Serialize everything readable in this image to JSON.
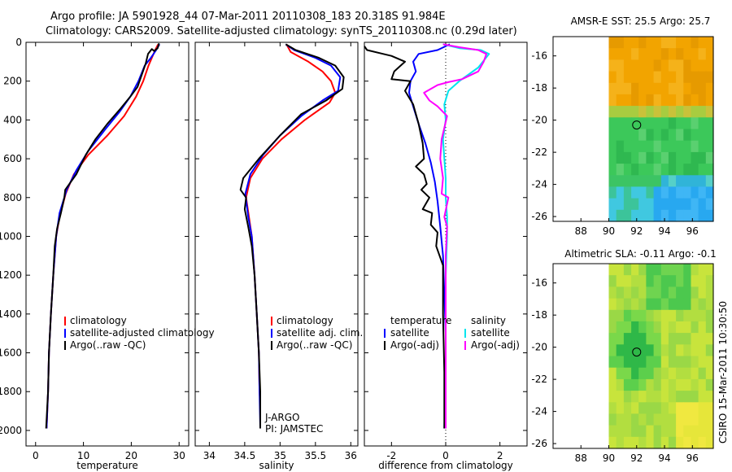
{
  "header": {
    "line1": "Argo profile: JA 5901928_44 07-Mar-2011 20110308_183 20.318S 91.984E",
    "line2": "Climatology: CARS2009. Satellite-adjusted climatology: synTS_20110308.nc (0.29d later)"
  },
  "colors": {
    "climatology": "#ff0000",
    "satellite": "#0000ff",
    "argo": "#000000",
    "salinity_satellite": "#00e5ee",
    "salinity_argo": "#ff00ff"
  },
  "side_label": "CSIRO 15-Mar-2011 10:30:50",
  "chart_data": [
    {
      "type": "line",
      "id": "temperature",
      "xlabel": "temperature",
      "ylabel": "depth",
      "xlim": [
        -2,
        32
      ],
      "ylim": [
        2080,
        0
      ],
      "xticks": [
        0,
        10,
        20,
        30
      ],
      "yticks": [
        0,
        200,
        400,
        600,
        800,
        1000,
        1200,
        1400,
        1600,
        1800,
        2000
      ],
      "legend": [
        "climatology",
        "satellite-adjusted climatology",
        "Argo(..raw -QC)"
      ],
      "series": [
        {
          "name": "climatology",
          "color": "#ff0000",
          "points": [
            [
              25.6,
              10
            ],
            [
              25,
              40
            ],
            [
              24.3,
              80
            ],
            [
              23.6,
              120
            ],
            [
              22.5,
              200
            ],
            [
              21,
              280
            ],
            [
              18.5,
              380
            ],
            [
              15,
              480
            ],
            [
              11,
              580
            ],
            [
              8,
              680
            ],
            [
              6.3,
              780
            ],
            [
              5,
              900
            ],
            [
              4.3,
              1000
            ],
            [
              3.7,
              1200
            ],
            [
              3.2,
              1400
            ],
            [
              2.8,
              1600
            ],
            [
              2.6,
              1800
            ],
            [
              2.3,
              1990
            ]
          ]
        },
        {
          "name": "satellite-adjusted climatology",
          "color": "#0000ff",
          "points": [
            [
              25.9,
              10
            ],
            [
              25.2,
              40
            ],
            [
              24.1,
              80
            ],
            [
              22.8,
              120
            ],
            [
              21.5,
              200
            ],
            [
              19.8,
              280
            ],
            [
              17.5,
              360
            ],
            [
              14.5,
              450
            ],
            [
              11,
              560
            ],
            [
              8.5,
              660
            ],
            [
              6.5,
              760
            ],
            [
              5,
              880
            ],
            [
              4.3,
              1000
            ],
            [
              3.7,
              1200
            ],
            [
              3.2,
              1400
            ],
            [
              2.8,
              1600
            ],
            [
              2.6,
              1800
            ],
            [
              2.3,
              1990
            ]
          ]
        },
        {
          "name": "Argo(..raw -QC)",
          "color": "#000000",
          "points": [
            [
              25.8,
              5
            ],
            [
              25.5,
              30
            ],
            [
              24.8,
              45
            ],
            [
              24.3,
              35
            ],
            [
              23.5,
              60
            ],
            [
              23,
              110
            ],
            [
              22.3,
              160
            ],
            [
              21.3,
              230
            ],
            [
              19.8,
              280
            ],
            [
              17.8,
              340
            ],
            [
              15,
              420
            ],
            [
              12.5,
              500
            ],
            [
              10.5,
              580
            ],
            [
              8.5,
              680
            ],
            [
              6.2,
              760
            ],
            [
              6,
              800
            ],
            [
              5.3,
              880
            ],
            [
              4.5,
              960
            ],
            [
              4,
              1050
            ],
            [
              3.7,
              1200
            ],
            [
              3.2,
              1400
            ],
            [
              2.8,
              1600
            ],
            [
              2.6,
              1800
            ],
            [
              2.2,
              1990
            ]
          ]
        }
      ]
    },
    {
      "type": "line",
      "id": "salinity",
      "xlabel": "salinity",
      "ylabel": "depth",
      "xlim": [
        33.8,
        36.1
      ],
      "ylim": [
        2080,
        0
      ],
      "xticks": [
        34,
        34.5,
        35,
        35.5,
        36
      ],
      "yticks": [
        0,
        200,
        400,
        600,
        800,
        1000,
        1200,
        1400,
        1600,
        1800,
        2000
      ],
      "legend": [
        "climatology",
        "satellite adj. clim.",
        "Argo(..raw -QC)"
      ],
      "annotations": [
        "J-ARGO",
        "PI: JAMSTEC"
      ],
      "series": [
        {
          "name": "climatology",
          "color": "#ff0000",
          "points": [
            [
              35.09,
              10
            ],
            [
              35.15,
              50
            ],
            [
              35.4,
              100
            ],
            [
              35.6,
              150
            ],
            [
              35.72,
              200
            ],
            [
              35.78,
              260
            ],
            [
              35.7,
              310
            ],
            [
              35.35,
              400
            ],
            [
              35.02,
              500
            ],
            [
              34.75,
              600
            ],
            [
              34.58,
              700
            ],
            [
              34.52,
              800
            ],
            [
              34.56,
              900
            ],
            [
              34.6,
              1000
            ],
            [
              34.64,
              1200
            ],
            [
              34.67,
              1400
            ],
            [
              34.7,
              1600
            ],
            [
              34.71,
              1800
            ],
            [
              34.72,
              1860
            ]
          ]
        },
        {
          "name": "satellite adj. clim.",
          "color": "#0000ff",
          "points": [
            [
              35.08,
              10
            ],
            [
              35.2,
              40
            ],
            [
              35.5,
              80
            ],
            [
              35.72,
              120
            ],
            [
              35.85,
              180
            ],
            [
              35.82,
              250
            ],
            [
              35.6,
              300
            ],
            [
              35.3,
              380
            ],
            [
              35.0,
              480
            ],
            [
              34.76,
              580
            ],
            [
              34.58,
              680
            ],
            [
              34.51,
              780
            ],
            [
              34.55,
              900
            ],
            [
              34.6,
              1000
            ],
            [
              34.64,
              1200
            ],
            [
              34.67,
              1400
            ],
            [
              34.7,
              1600
            ],
            [
              34.71,
              1800
            ],
            [
              34.72,
              1990
            ]
          ]
        },
        {
          "name": "Argo(..raw -QC)",
          "color": "#000000",
          "points": [
            [
              35.08,
              10
            ],
            [
              35.22,
              40
            ],
            [
              35.55,
              80
            ],
            [
              35.78,
              120
            ],
            [
              35.9,
              180
            ],
            [
              35.88,
              240
            ],
            [
              35.65,
              300
            ],
            [
              35.3,
              370
            ],
            [
              35.0,
              480
            ],
            [
              34.7,
              600
            ],
            [
              34.48,
              700
            ],
            [
              34.44,
              760
            ],
            [
              34.52,
              800
            ],
            [
              34.5,
              860
            ],
            [
              34.55,
              950
            ],
            [
              34.6,
              1050
            ],
            [
              34.64,
              1200
            ],
            [
              34.67,
              1400
            ],
            [
              34.7,
              1600
            ],
            [
              34.72,
              1800
            ],
            [
              34.72,
              1990
            ]
          ]
        }
      ]
    },
    {
      "type": "line",
      "id": "difference",
      "xlabel": "difference from climatology",
      "ylabel": "depth",
      "xlim": [
        -3,
        3
      ],
      "ylim": [
        2080,
        0
      ],
      "xticks": [
        -2,
        0,
        2
      ],
      "yticks": [
        0,
        200,
        400,
        600,
        800,
        1000,
        1200,
        1400,
        1600,
        1800,
        2000
      ],
      "legend": [
        "temperature",
        "satellite",
        "Argo(-adj)",
        "salinity",
        "satellite",
        "Argo(-adj)"
      ],
      "series": [
        {
          "name": "temperature satellite",
          "color": "#0000ff",
          "points": [
            [
              0.15,
              10
            ],
            [
              -0.3,
              40
            ],
            [
              -1.0,
              60
            ],
            [
              -1.2,
              100
            ],
            [
              -1.1,
              150
            ],
            [
              -1.3,
              200
            ],
            [
              -1.35,
              260
            ],
            [
              -1.2,
              330
            ],
            [
              -1.0,
              420
            ],
            [
              -0.75,
              520
            ],
            [
              -0.55,
              620
            ],
            [
              -0.4,
              720
            ],
            [
              -0.3,
              820
            ],
            [
              -0.2,
              950
            ],
            [
              -0.1,
              1100
            ],
            [
              -0.05,
              1300
            ],
            [
              0,
              1500
            ],
            [
              0,
              1700
            ],
            [
              -0.05,
              1990
            ]
          ]
        },
        {
          "name": "temperature Argo(-adj)",
          "color": "#000000",
          "points": [
            [
              -3.0,
              20
            ],
            [
              -2.9,
              40
            ],
            [
              -2.3,
              60
            ],
            [
              -2.0,
              70
            ],
            [
              -1.5,
              100
            ],
            [
              -1.9,
              150
            ],
            [
              -2.0,
              190
            ],
            [
              -1.3,
              200
            ],
            [
              -1.5,
              250
            ],
            [
              -1.2,
              320
            ],
            [
              -1.0,
              420
            ],
            [
              -0.85,
              520
            ],
            [
              -0.8,
              600
            ],
            [
              -1.1,
              640
            ],
            [
              -0.8,
              680
            ],
            [
              -0.7,
              730
            ],
            [
              -0.9,
              760
            ],
            [
              -0.6,
              800
            ],
            [
              -0.85,
              860
            ],
            [
              -0.5,
              880
            ],
            [
              -0.55,
              940
            ],
            [
              -0.3,
              980
            ],
            [
              -0.35,
              1050
            ],
            [
              -0.1,
              1150
            ],
            [
              -0.1,
              1400
            ],
            [
              -0.05,
              1700
            ],
            [
              -0.05,
              1990
            ]
          ]
        },
        {
          "name": "salinity satellite",
          "color": "#00e5ee",
          "points": [
            [
              -0.1,
              10
            ],
            [
              0.5,
              30
            ],
            [
              1.3,
              40
            ],
            [
              1.6,
              60
            ],
            [
              1.2,
              130
            ],
            [
              0.5,
              200
            ],
            [
              0.1,
              250
            ],
            [
              -0.05,
              320
            ],
            [
              0,
              400
            ],
            [
              -0.1,
              500
            ],
            [
              -0.05,
              600
            ],
            [
              0,
              700
            ],
            [
              0,
              800
            ],
            [
              0.05,
              900
            ],
            [
              0.05,
              1000
            ],
            [
              0,
              1200
            ],
            [
              0,
              1400
            ],
            [
              0,
              1600
            ],
            [
              0,
              1800
            ],
            [
              0,
              1990
            ]
          ]
        },
        {
          "name": "salinity Argo(-adj)",
          "color": "#ff00ff",
          "points": [
            [
              -0.1,
              10
            ],
            [
              0.5,
              25
            ],
            [
              1.2,
              40
            ],
            [
              1.5,
              60
            ],
            [
              1.4,
              100
            ],
            [
              1.2,
              150
            ],
            [
              0.6,
              190
            ],
            [
              0.1,
              205
            ],
            [
              -0.3,
              220
            ],
            [
              -0.8,
              260
            ],
            [
              -0.6,
              300
            ],
            [
              -0.3,
              330
            ],
            [
              0.05,
              380
            ],
            [
              -0.15,
              500
            ],
            [
              -0.2,
              600
            ],
            [
              -0.1,
              700
            ],
            [
              -0.15,
              780
            ],
            [
              0.1,
              800
            ],
            [
              -0.05,
              900
            ],
            [
              0.05,
              950
            ],
            [
              0,
              1100
            ],
            [
              0,
              1300
            ],
            [
              0,
              1500
            ],
            [
              0,
              1990
            ]
          ]
        }
      ]
    },
    {
      "type": "heatmap",
      "id": "sst_map",
      "title": "AMSR-E SST: 25.5 Argo: 25.7",
      "xlim": [
        86,
        97.5
      ],
      "ylim": [
        -26.3,
        -14.8
      ],
      "xticks": [
        88,
        90,
        92,
        94,
        96
      ],
      "yticks": [
        -16,
        -18,
        -20,
        -22,
        -24,
        -26
      ],
      "data_x_start": 90,
      "marker": [
        92,
        -20.3
      ]
    },
    {
      "type": "heatmap",
      "id": "sla_map",
      "title": "Altimetric SLA: -0.11 Argo: -0.1",
      "xlim": [
        86,
        97.5
      ],
      "ylim": [
        -26.3,
        -14.8
      ],
      "xticks": [
        88,
        90,
        92,
        94,
        96
      ],
      "yticks": [
        -16,
        -18,
        -20,
        -22,
        -24,
        -26
      ],
      "data_x_start": 90,
      "marker": [
        92,
        -20.3
      ]
    }
  ]
}
